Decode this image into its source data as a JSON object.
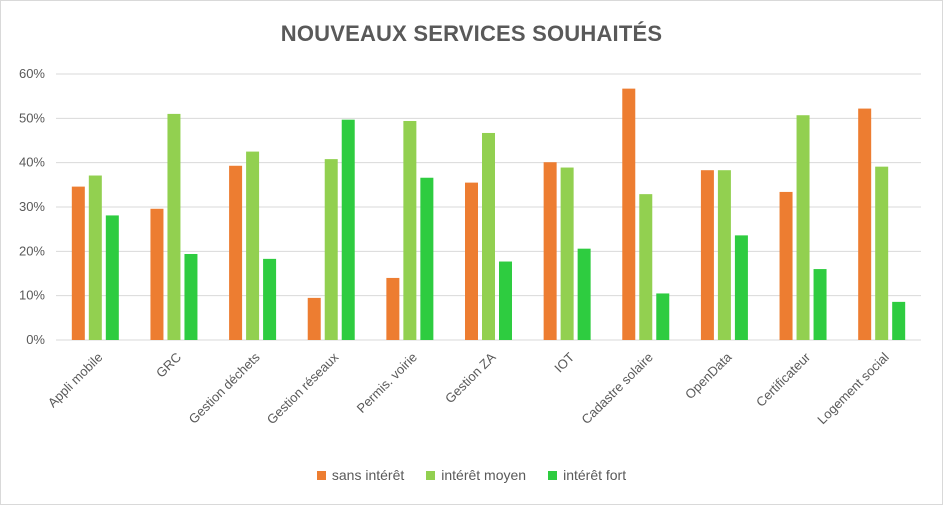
{
  "chart_data": {
    "type": "bar",
    "title": "NOUVEAUX SERVICES SOUHAITÉS",
    "categories": [
      "Appli mobile",
      "GRC",
      "Gestion déchets",
      "Gestion réseaux",
      "Permis. voirie",
      "Gestion ZA",
      "IOT",
      "Cadastre solaire",
      "OpenData",
      "Certificateur",
      "Logement social"
    ],
    "series": [
      {
        "name": "sans intérêt",
        "color": "#ED7D31",
        "values": [
          34.6,
          29.6,
          39.3,
          9.5,
          14.0,
          35.5,
          40.1,
          56.7,
          38.3,
          33.4,
          52.2
        ]
      },
      {
        "name": "intérêt moyen",
        "color": "#92D050",
        "values": [
          37.1,
          51.0,
          42.5,
          40.8,
          49.4,
          46.7,
          38.9,
          32.9,
          38.3,
          50.7,
          39.1
        ]
      },
      {
        "name": "intérêt fort",
        "color": "#2ECC40",
        "values": [
          28.1,
          19.4,
          18.3,
          49.7,
          36.6,
          17.7,
          20.6,
          10.5,
          23.6,
          16.0,
          8.6
        ]
      }
    ],
    "ylim": [
      0,
      60
    ],
    "yticks": [
      "0%",
      "10%",
      "20%",
      "30%",
      "40%",
      "50%",
      "60%"
    ],
    "grid": true,
    "legend_position": "bottom"
  }
}
